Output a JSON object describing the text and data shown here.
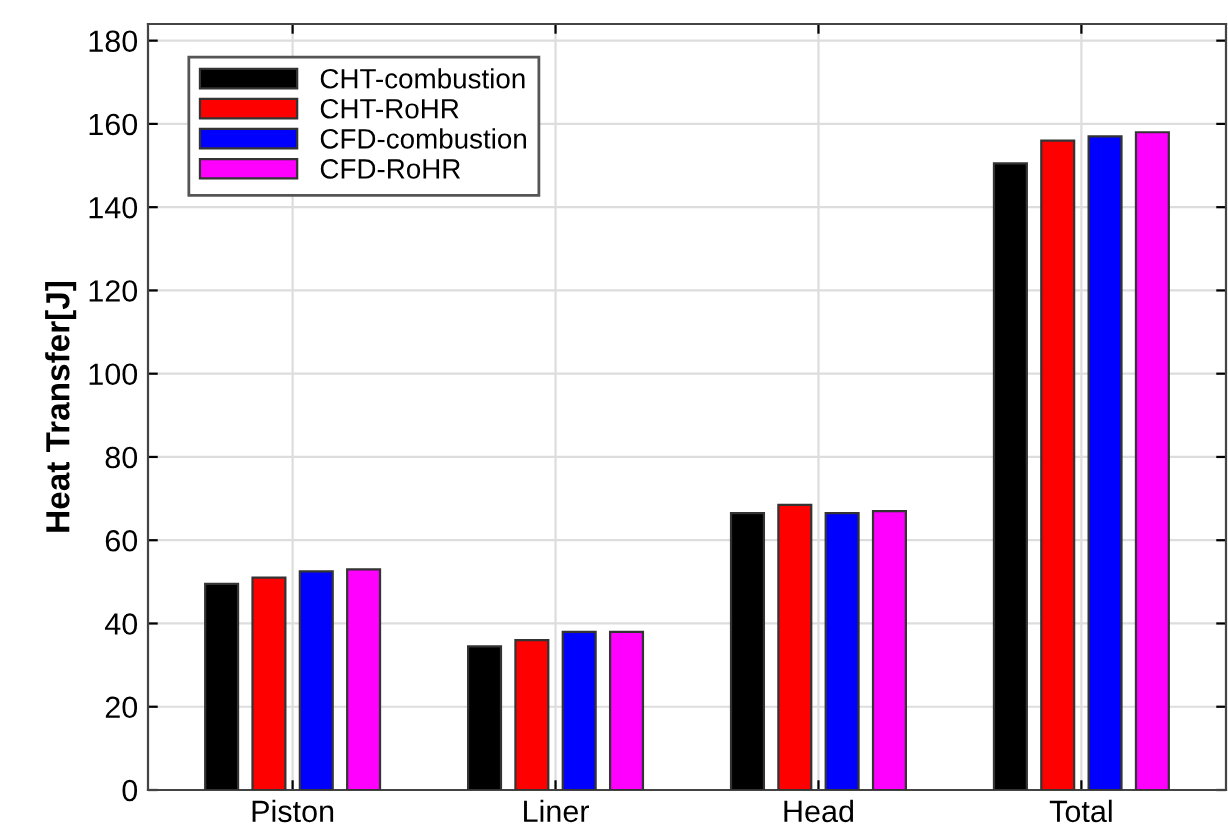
{
  "chart_data": {
    "type": "bar",
    "ylabel": "Heat Transfer[J]",
    "categories": [
      "Piston",
      "Liner",
      "Head",
      "Total"
    ],
    "series": [
      {
        "name": "CHT-combustion",
        "color": "#000000",
        "values": [
          49.5,
          34.5,
          66.5,
          150.5
        ]
      },
      {
        "name": "CHT-RoHR",
        "color": "#ff0000",
        "values": [
          51,
          36,
          68.5,
          156
        ]
      },
      {
        "name": "CFD-combustion",
        "color": "#0000ff",
        "values": [
          52.5,
          38,
          66.5,
          157
        ]
      },
      {
        "name": "CFD-RoHR",
        "color": "#ff00ff",
        "values": [
          53,
          38,
          67,
          158
        ]
      }
    ],
    "ylim": [
      0,
      184
    ],
    "yticks": [
      0,
      20,
      40,
      60,
      80,
      100,
      120,
      140,
      160,
      180
    ],
    "grid": true,
    "legend": "top left"
  }
}
